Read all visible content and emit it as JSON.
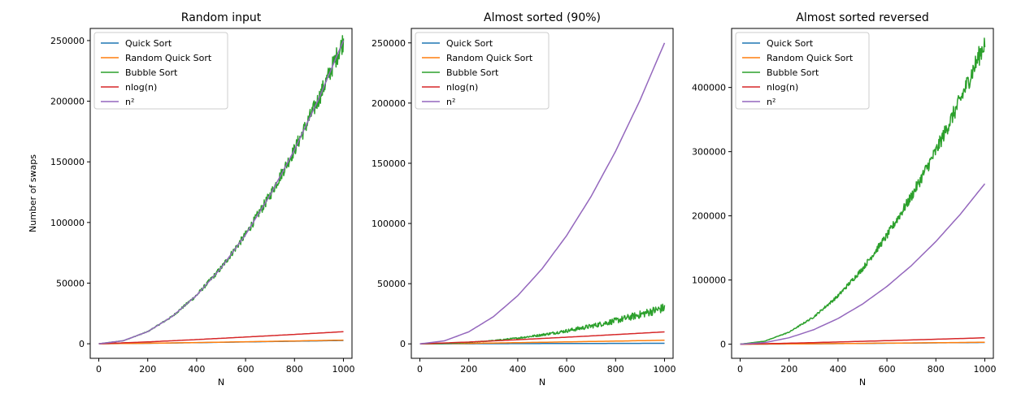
{
  "colors": {
    "quick": "#1f77b4",
    "random_quick": "#ff7f0e",
    "bubble": "#2ca02c",
    "nlogn": "#d62728",
    "n2": "#9467bd"
  },
  "chart_data": [
    {
      "type": "line",
      "title": "Random input",
      "xlabel": "N",
      "ylabel": "Number of swaps",
      "xlim": [
        -35,
        1035
      ],
      "ylim": [
        -12000,
        260000
      ],
      "xticks": [
        0,
        200,
        400,
        600,
        800,
        1000
      ],
      "xtick_labels": [
        "0",
        "200",
        "400",
        "600",
        "800",
        "1000"
      ],
      "yticks": [
        0,
        50000,
        100000,
        150000,
        200000,
        250000
      ],
      "ytick_labels": [
        "0",
        "50000",
        "100000",
        "150000",
        "200000",
        "250000"
      ],
      "legend_position": "top-left",
      "series": [
        {
          "name": "Quick Sort",
          "color_key": "quick",
          "x": [
            0,
            200,
            400,
            600,
            800,
            1000
          ],
          "y": [
            0,
            380,
            900,
            1500,
            2100,
            2700
          ]
        },
        {
          "name": "Random Quick Sort",
          "color_key": "random_quick",
          "x": [
            0,
            200,
            400,
            600,
            800,
            1000
          ],
          "y": [
            0,
            420,
            1000,
            1650,
            2300,
            3000
          ]
        },
        {
          "name": "Bubble Sort",
          "color_key": "bubble",
          "x": [
            0,
            100,
            200,
            300,
            400,
            500,
            600,
            700,
            800,
            900,
            1000
          ],
          "y": [
            0,
            2500,
            10000,
            22500,
            40000,
            62500,
            90000,
            122500,
            160000,
            202500,
            250000
          ]
        },
        {
          "name": "nlog(n)",
          "color_key": "nlogn",
          "x": [
            0,
            200,
            400,
            600,
            800,
            1000
          ],
          "y": [
            0,
            1529,
            3458,
            5545,
            7715,
            9966
          ]
        },
        {
          "name": "n²",
          "color_key": "n2",
          "x": [
            0,
            100,
            200,
            300,
            400,
            500,
            600,
            700,
            800,
            900,
            1000
          ],
          "y": [
            0,
            2500,
            10000,
            22500,
            40000,
            62500,
            90000,
            122500,
            160000,
            202500,
            250000
          ]
        }
      ]
    },
    {
      "type": "line",
      "title": "Almost sorted (90%)",
      "xlabel": "N",
      "ylabel": "",
      "xlim": [
        -35,
        1035
      ],
      "ylim": [
        -12000,
        262000
      ],
      "xticks": [
        0,
        200,
        400,
        600,
        800,
        1000
      ],
      "xtick_labels": [
        "0",
        "200",
        "400",
        "600",
        "800",
        "1000"
      ],
      "yticks": [
        0,
        50000,
        100000,
        150000,
        200000,
        250000
      ],
      "ytick_labels": [
        "0",
        "50000",
        "100000",
        "150000",
        "200000",
        "250000"
      ],
      "legend_position": "top-left",
      "series": [
        {
          "name": "Quick Sort",
          "color_key": "quick",
          "x": [
            0,
            200,
            400,
            600,
            800,
            1000
          ],
          "y": [
            0,
            100,
            200,
            300,
            400,
            500
          ]
        },
        {
          "name": "Random Quick Sort",
          "color_key": "random_quick",
          "x": [
            0,
            200,
            400,
            600,
            800,
            1000
          ],
          "y": [
            0,
            420,
            1000,
            1650,
            2300,
            3000
          ]
        },
        {
          "name": "Bubble Sort",
          "color_key": "bubble",
          "x": [
            0,
            100,
            200,
            300,
            400,
            500,
            600,
            700,
            800,
            900,
            1000
          ],
          "y": [
            0,
            300,
            1200,
            2700,
            4800,
            7500,
            10800,
            14700,
            19200,
            24300,
            30000
          ]
        },
        {
          "name": "nlog(n)",
          "color_key": "nlogn",
          "x": [
            0,
            200,
            400,
            600,
            800,
            1000
          ],
          "y": [
            0,
            1529,
            3458,
            5545,
            7715,
            9966
          ]
        },
        {
          "name": "n²",
          "color_key": "n2",
          "x": [
            0,
            100,
            200,
            300,
            400,
            500,
            600,
            700,
            800,
            900,
            1000
          ],
          "y": [
            0,
            2500,
            10000,
            22500,
            40000,
            62500,
            90000,
            122500,
            160000,
            202500,
            250000
          ]
        }
      ]
    },
    {
      "type": "line",
      "title": "Almost sorted reversed",
      "xlabel": "N",
      "ylabel": "",
      "xlim": [
        -35,
        1035
      ],
      "ylim": [
        -22000,
        492000
      ],
      "xticks": [
        0,
        200,
        400,
        600,
        800,
        1000
      ],
      "xtick_labels": [
        "0",
        "200",
        "400",
        "600",
        "800",
        "1000"
      ],
      "yticks": [
        0,
        100000,
        200000,
        300000,
        400000
      ],
      "ytick_labels": [
        "0",
        "100000",
        "200000",
        "300000",
        "400000"
      ],
      "legend_position": "top-left",
      "series": [
        {
          "name": "Quick Sort",
          "color_key": "quick",
          "x": [
            0,
            200,
            400,
            600,
            800,
            1000
          ],
          "y": [
            0,
            380,
            900,
            1500,
            2100,
            2700
          ]
        },
        {
          "name": "Random Quick Sort",
          "color_key": "random_quick",
          "x": [
            0,
            200,
            400,
            600,
            800,
            1000
          ],
          "y": [
            0,
            420,
            1000,
            1650,
            2300,
            3000
          ]
        },
        {
          "name": "Bubble Sort",
          "color_key": "bubble",
          "x": [
            0,
            100,
            200,
            300,
            400,
            500,
            600,
            700,
            800,
            900,
            1000
          ],
          "y": [
            0,
            4700,
            18800,
            42300,
            75200,
            117500,
            169200,
            230300,
            300800,
            380700,
            470000
          ]
        },
        {
          "name": "nlog(n)",
          "color_key": "nlogn",
          "x": [
            0,
            200,
            400,
            600,
            800,
            1000
          ],
          "y": [
            0,
            1529,
            3458,
            5545,
            7715,
            9966
          ]
        },
        {
          "name": "n²",
          "color_key": "n2",
          "x": [
            0,
            100,
            200,
            300,
            400,
            500,
            600,
            700,
            800,
            900,
            1000
          ],
          "y": [
            0,
            2500,
            10000,
            22500,
            40000,
            62500,
            90000,
            122500,
            160000,
            202500,
            250000
          ]
        }
      ]
    }
  ]
}
